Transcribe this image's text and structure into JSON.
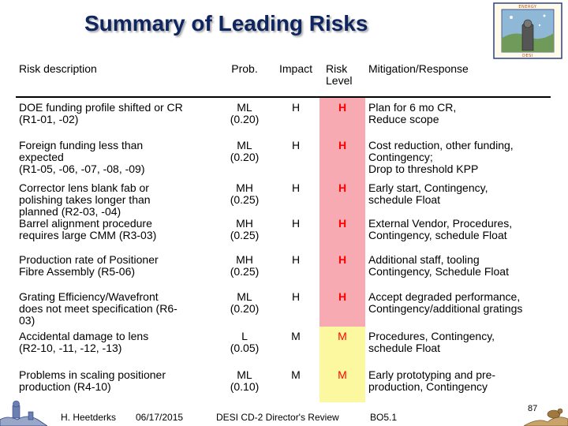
{
  "slide": {
    "title": "Summary of Leading Risks"
  },
  "table": {
    "headers": {
      "description": "Risk description",
      "prob": "Prob.",
      "impact": "Impact",
      "level": "Risk Level",
      "mitigation": "Mitigation/Response"
    },
    "rows": [
      {
        "description": "DOE funding profile shifted or CR\n(R1-01, -02)",
        "prob": "ML\n(0.20)",
        "impact": "H",
        "level": "H",
        "mitigation": "Plan for 6 mo CR,\nReduce scope"
      },
      {
        "description": "Foreign funding less than\nexpected\n(R1-05, -06, -07, -08, -09)",
        "prob": "ML\n(0.20)",
        "impact": "H",
        "level": "H",
        "mitigation": "Cost reduction, other funding,\nContingency;\nDrop to threshold KPP"
      },
      {
        "description": "Corrector lens blank fab or\npolishing takes longer than\nplanned (R2-03, -04)",
        "prob": "MH\n(0.25)",
        "impact": "H",
        "level": "H",
        "mitigation": "Early start, Contingency,\nschedule Float"
      },
      {
        "description": "Barrel alignment procedure\nrequires large CMM (R3-03)",
        "prob": "MH\n(0.25)",
        "impact": "H",
        "level": "H",
        "mitigation": "External Vendor, Procedures,\nContingency, schedule Float"
      },
      {
        "description": "Production rate of Positioner\nFibre Assembly (R5-06)",
        "prob": "MH\n(0.25)",
        "impact": "H",
        "level": "H",
        "mitigation": "Additional staff, tooling\nContingency, Schedule Float"
      },
      {
        "description": "Grating Efficiency/Wavefront\ndoes not meet specification (R6-\n03)",
        "prob": "ML\n(0.20)",
        "impact": "H",
        "level": "H",
        "mitigation": "Accept degraded performance,\nContingency/additional gratings"
      },
      {
        "description": "Accidental damage to lens\n(R2-10, -11, -12, -13)",
        "prob": "L\n(0.05)",
        "impact": "M",
        "level": "M",
        "mitigation": "Procedures, Contingency,\nschedule Float"
      },
      {
        "description": "Problems in scaling positioner\nproduction (R4-10)",
        "prob": "ML\n(0.10)",
        "impact": "M",
        "level": "M",
        "mitigation": "Early prototyping and pre-\nproduction, Contingency"
      }
    ]
  },
  "footer": {
    "author": "H. Heetderks",
    "date": "06/17/2015",
    "review": "DESI CD-2 Director's Review",
    "bo": "BO5.1",
    "page": "87"
  },
  "colors": {
    "title": "#0f2560",
    "high_fill": "#f7aab2",
    "medium_fill": "#fbf8a0",
    "level_text": "#ff0000"
  },
  "logo": {
    "icon": "desi-energy-logo-icon",
    "text_top": "ENERGY",
    "text_bottom": "DESI"
  }
}
